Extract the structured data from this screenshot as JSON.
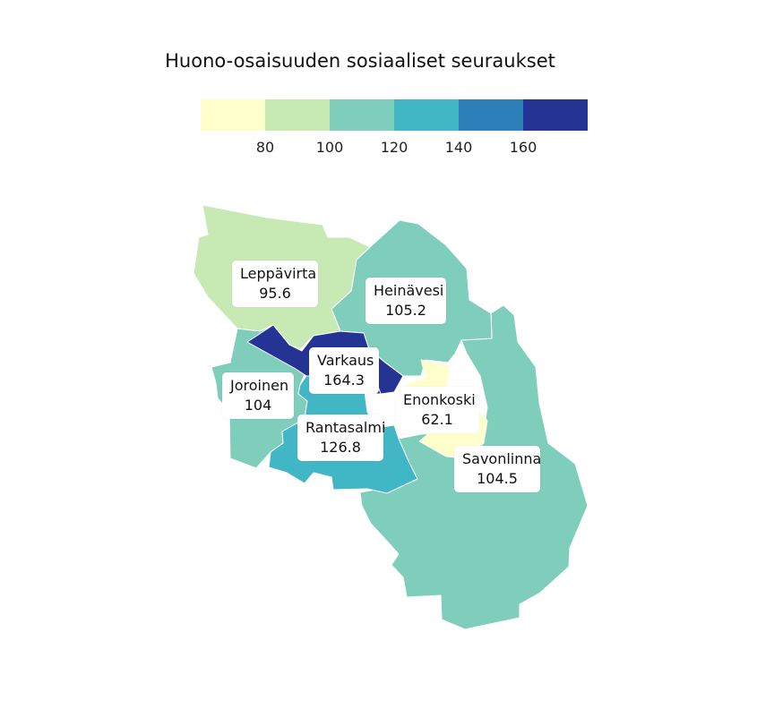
{
  "title": "Huono-osaisuuden sosiaaliset seuraukset",
  "legend": {
    "bins": [
      {
        "color": "#ffffcc"
      },
      {
        "color": "#c7e9b4"
      },
      {
        "color": "#7fcdbb"
      },
      {
        "color": "#41b6c4"
      },
      {
        "color": "#2c7fb8"
      },
      {
        "color": "#253494"
      }
    ],
    "ticks": [
      "80",
      "100",
      "120",
      "140",
      "160"
    ]
  },
  "regions": [
    {
      "name": "Leppävirta",
      "value": "95.6",
      "color": "#c7e9b4"
    },
    {
      "name": "Heinävesi",
      "value": "105.2",
      "color": "#7fcdbb"
    },
    {
      "name": "Varkaus",
      "value": "164.3",
      "color": "#253494"
    },
    {
      "name": "Joroinen",
      "value": "104",
      "color": "#7fcdbb"
    },
    {
      "name": "Enonkoski",
      "value": "62.1",
      "color": "#ffffcc"
    },
    {
      "name": "Rantasalmi",
      "value": "126.8",
      "color": "#41b6c4"
    },
    {
      "name": "Savonlinna",
      "value": "104.5",
      "color": "#7fcdbb"
    }
  ]
}
